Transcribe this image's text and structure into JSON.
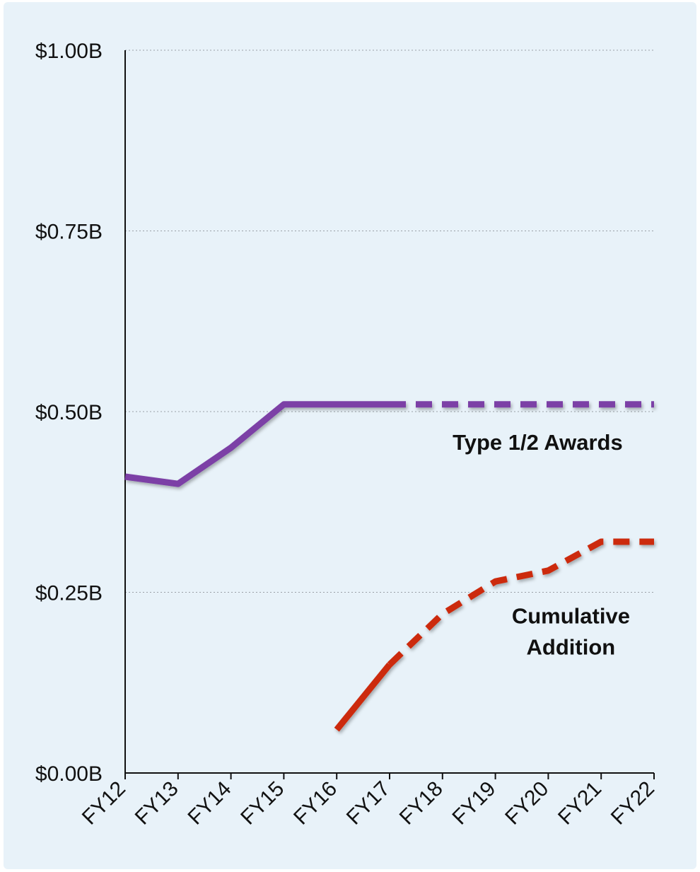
{
  "chart_data": {
    "type": "line",
    "title": "",
    "xlabel": "",
    "ylabel": "",
    "categories": [
      "FY12",
      "FY13",
      "FY14",
      "FY15",
      "FY16",
      "FY17",
      "FY18",
      "FY19",
      "FY20",
      "FY21",
      "FY22"
    ],
    "ylim": [
      0,
      1.0
    ],
    "yticks": [
      0,
      0.25,
      0.5,
      0.75,
      1.0
    ],
    "ytick_labels": [
      "$0.00B",
      "$0.25B",
      "$0.50B",
      "$0.75B",
      "$1.00B"
    ],
    "grid": "horizontal dotted",
    "series": [
      {
        "name": "Type 1/2 Awards",
        "color": "#7b3fa6",
        "values": [
          0.41,
          0.4,
          0.45,
          0.51,
          0.51,
          0.51,
          0.51,
          0.51,
          0.51,
          0.51,
          0.51
        ],
        "solid_until": "FY17",
        "projected_from": "FY17"
      },
      {
        "name": "Cumulative\nAddition",
        "label_lines": [
          "Cumulative",
          "Addition"
        ],
        "color": "#cc2a0f",
        "values": [
          null,
          null,
          null,
          null,
          0.06,
          0.15,
          0.22,
          0.265,
          0.28,
          0.32,
          0.32
        ],
        "solid_until": "FY17",
        "projected_from": "FY17"
      }
    ]
  }
}
